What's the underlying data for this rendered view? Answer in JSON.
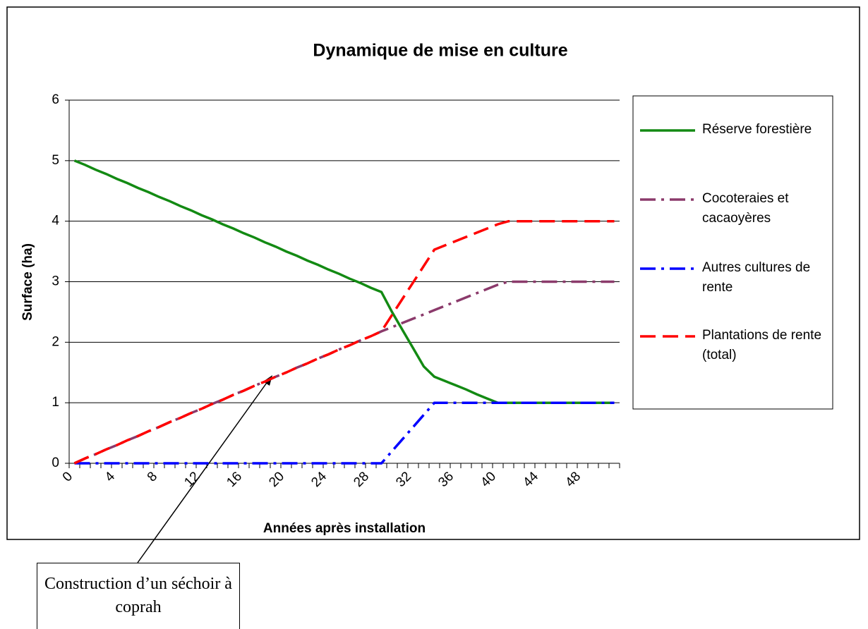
{
  "chart_data": {
    "type": "line",
    "title": "Dynamique de mise en culture",
    "xlabel": "Années après installation",
    "ylabel": "Surface (ha)",
    "categories": [
      "0",
      null,
      null,
      null,
      "4",
      null,
      null,
      null,
      "8",
      null,
      null,
      null,
      "12",
      null,
      null,
      null,
      "16",
      null,
      null,
      null,
      "20",
      null,
      null,
      null,
      "24",
      null,
      null,
      null,
      "28",
      null,
      null,
      null,
      "32",
      null,
      null,
      null,
      "36",
      null,
      null,
      null,
      "40",
      null,
      null,
      null,
      "44",
      null,
      null,
      null,
      "48",
      null,
      null,
      null
    ],
    "ylim": [
      0,
      6
    ],
    "yticks": [
      0,
      1,
      2,
      3,
      4,
      5,
      6
    ],
    "grid": true,
    "series": [
      {
        "name": "Réserve forestière",
        "color": "#138a13",
        "dash": "solid",
        "values": [
          5,
          4.93,
          4.85,
          4.78,
          4.7,
          4.63,
          4.55,
          4.48,
          4.4,
          4.33,
          4.25,
          4.18,
          4.1,
          4.03,
          3.95,
          3.88,
          3.8,
          3.73,
          3.65,
          3.58,
          3.5,
          3.43,
          3.35,
          3.28,
          3.2,
          3.13,
          3.05,
          2.98,
          2.9,
          2.83,
          2.5,
          2.2,
          1.9,
          1.6,
          1.43,
          1.36,
          1.29,
          1.22,
          1.14,
          1.07,
          1,
          1,
          1,
          1,
          1,
          1,
          1,
          1,
          1,
          1,
          1,
          1
        ]
      },
      {
        "name": "Cocoteraies et cacaoyères",
        "color": "#8b3a6b",
        "dash": "dashdot",
        "values": [
          0,
          0.08,
          0.15,
          0.23,
          0.3,
          0.38,
          0.45,
          0.53,
          0.6,
          0.68,
          0.75,
          0.83,
          0.9,
          0.98,
          1.05,
          1.13,
          1.2,
          1.28,
          1.35,
          1.43,
          1.5,
          1.58,
          1.65,
          1.73,
          1.8,
          1.88,
          1.95,
          2.03,
          2.1,
          2.18,
          2.25,
          2.32,
          2.39,
          2.46,
          2.53,
          2.6,
          2.67,
          2.74,
          2.81,
          2.88,
          2.95,
          3,
          3,
          3,
          3,
          3,
          3,
          3,
          3,
          3,
          3,
          3
        ]
      },
      {
        "name": "Autres cultures de rente",
        "color": "#0000ff",
        "dash": "dashdot",
        "values": [
          0,
          0,
          0,
          0,
          0,
          0,
          0,
          0,
          0,
          0,
          0,
          0,
          0,
          0,
          0,
          0,
          0,
          0,
          0,
          0,
          0,
          0,
          0,
          0,
          0,
          0,
          0,
          0,
          0,
          0,
          0.2,
          0.4,
          0.6,
          0.8,
          1,
          1,
          1,
          1,
          1,
          1,
          1,
          1,
          1,
          1,
          1,
          1,
          1,
          1,
          1,
          1,
          1,
          1
        ]
      },
      {
        "name": "Plantations de rente (total)",
        "color": "#ff0000",
        "dash": "dash",
        "values": [
          0,
          0.08,
          0.15,
          0.23,
          0.3,
          0.38,
          0.45,
          0.53,
          0.6,
          0.68,
          0.75,
          0.83,
          0.9,
          0.98,
          1.05,
          1.13,
          1.2,
          1.28,
          1.35,
          1.43,
          1.5,
          1.58,
          1.65,
          1.73,
          1.8,
          1.88,
          1.95,
          2.03,
          2.1,
          2.18,
          2.45,
          2.72,
          2.99,
          3.26,
          3.53,
          3.6,
          3.67,
          3.74,
          3.81,
          3.88,
          3.95,
          4,
          4,
          4,
          4,
          4,
          4,
          4,
          4,
          4,
          4,
          4
        ]
      }
    ],
    "annotation": "Construction d’un séchoir à coprah"
  }
}
